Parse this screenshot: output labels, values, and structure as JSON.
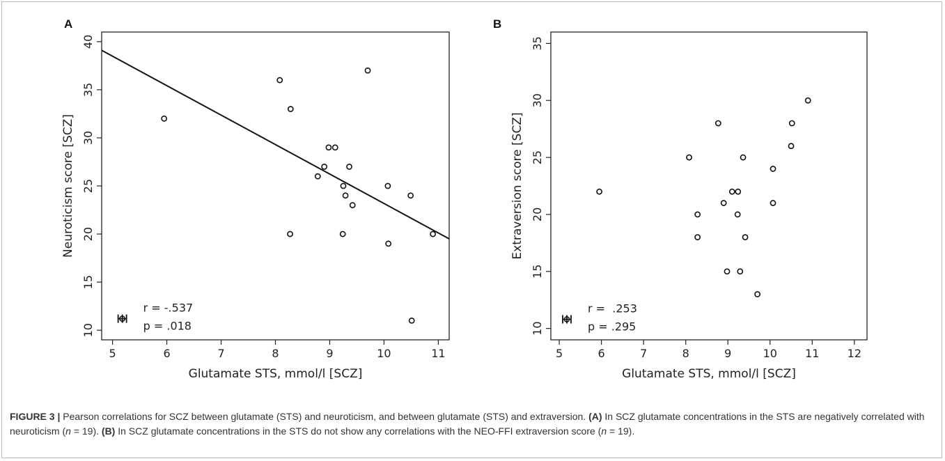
{
  "chart_data": [
    {
      "type": "scatter",
      "panel_label": "A",
      "xlabel": "Glutamate STS, mmol/l [SCZ]",
      "ylabel": "Neuroticism score [SCZ]",
      "xlim": [
        4.8,
        11.2
      ],
      "ylim": [
        9,
        41
      ],
      "xticks": [
        5,
        6,
        7,
        8,
        9,
        10,
        11
      ],
      "yticks": [
        10,
        15,
        20,
        25,
        30,
        35,
        40
      ],
      "points": [
        {
          "x": 5.95,
          "y": 32
        },
        {
          "x": 8.08,
          "y": 36
        },
        {
          "x": 8.28,
          "y": 33
        },
        {
          "x": 8.27,
          "y": 20
        },
        {
          "x": 8.78,
          "y": 26
        },
        {
          "x": 8.9,
          "y": 27
        },
        {
          "x": 8.98,
          "y": 29
        },
        {
          "x": 9.1,
          "y": 29
        },
        {
          "x": 9.25,
          "y": 25
        },
        {
          "x": 9.24,
          "y": 20
        },
        {
          "x": 9.29,
          "y": 24
        },
        {
          "x": 9.36,
          "y": 27
        },
        {
          "x": 9.42,
          "y": 23
        },
        {
          "x": 9.7,
          "y": 37
        },
        {
          "x": 10.07,
          "y": 25
        },
        {
          "x": 10.08,
          "y": 19
        },
        {
          "x": 10.49,
          "y": 24
        },
        {
          "x": 10.51,
          "y": 11
        },
        {
          "x": 10.9,
          "y": 20
        }
      ],
      "regression_line": {
        "x": [
          4.8,
          11.2
        ],
        "y": [
          39.1,
          19.5
        ]
      },
      "error_marker": {
        "x": 5.18,
        "y": 11.2
      },
      "annotations": [
        "r = -.537",
        "p = .018"
      ],
      "grid": false
    },
    {
      "type": "scatter",
      "panel_label": "B",
      "xlabel": "Glutamate STS, mmol/l [SCZ]",
      "ylabel": "Extraversion score [SCZ]",
      "xlim": [
        4.8,
        12.3
      ],
      "ylim": [
        9,
        36
      ],
      "xticks": [
        5,
        6,
        7,
        8,
        9,
        10,
        11,
        12
      ],
      "yticks": [
        10,
        15,
        20,
        25,
        30,
        35
      ],
      "points": [
        {
          "x": 5.95,
          "y": 22
        },
        {
          "x": 8.08,
          "y": 25
        },
        {
          "x": 8.28,
          "y": 20
        },
        {
          "x": 8.28,
          "y": 18
        },
        {
          "x": 8.77,
          "y": 28
        },
        {
          "x": 8.9,
          "y": 21
        },
        {
          "x": 8.98,
          "y": 15
        },
        {
          "x": 9.1,
          "y": 22
        },
        {
          "x": 9.24,
          "y": 22
        },
        {
          "x": 9.23,
          "y": 20
        },
        {
          "x": 9.29,
          "y": 15
        },
        {
          "x": 9.36,
          "y": 25
        },
        {
          "x": 9.41,
          "y": 18
        },
        {
          "x": 9.7,
          "y": 13
        },
        {
          "x": 10.07,
          "y": 24
        },
        {
          "x": 10.07,
          "y": 21
        },
        {
          "x": 10.5,
          "y": 26
        },
        {
          "x": 10.52,
          "y": 28
        },
        {
          "x": 10.9,
          "y": 30
        }
      ],
      "error_marker": {
        "x": 5.18,
        "y": 10.8
      },
      "annotations": [
        "r =  .253",
        "p = .295"
      ],
      "grid": false
    }
  ],
  "caption": {
    "label": "FIGURE 3 |",
    "intro": " Pearson correlations for SCZ between glutamate (STS) and neuroticism, and between glutamate (STS) and extraversion. ",
    "a_tag": "(A)",
    "a_text_1": " In SCZ glutamate concentrations in the STS are negatively correlated with neuroticism (",
    "n_sym_a": "n",
    "a_text_2": " = 19). ",
    "b_tag": "(B)",
    "b_text_1": " In SCZ glutamate concentrations in the STS do not show any correlations with the NEO-FFI extraversion score (",
    "n_sym_b": "n",
    "b_text_2": " = 19)."
  }
}
